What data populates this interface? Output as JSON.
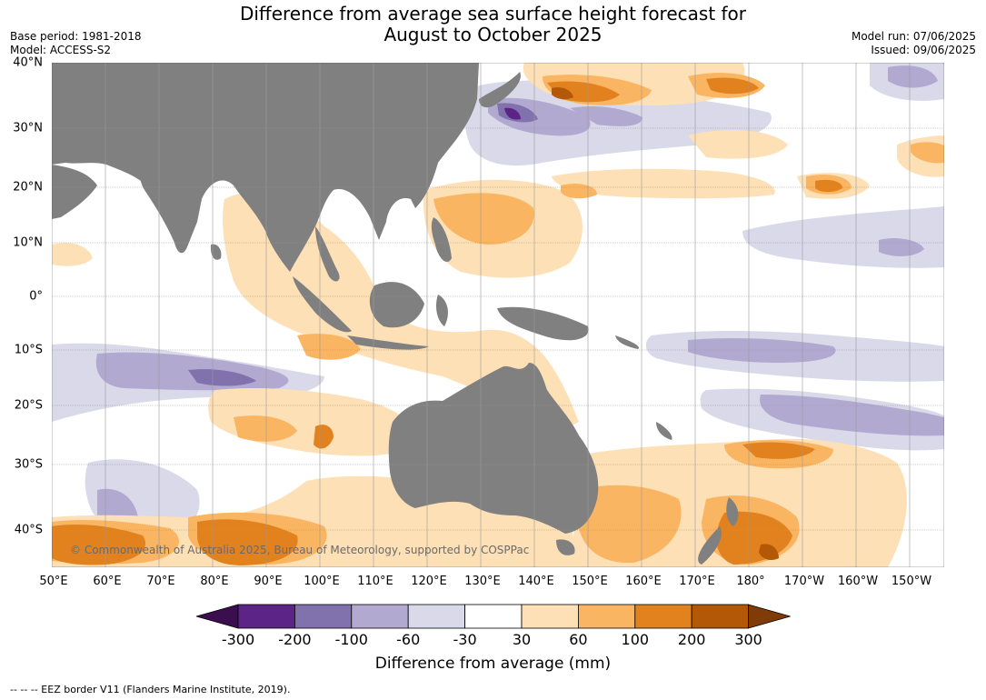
{
  "title_line1": "Difference from average sea surface height forecast for",
  "title_line2": "August to October 2025",
  "base_period": "Base period: 1981-2018",
  "model": "Model: ACCESS-S2",
  "model_run": "Model run: 07/06/2025",
  "issued": "Issued: 09/06/2025",
  "copyright": "© Commonwealth of Australia 2025, Bureau of Meteorology, supported by COSPPac",
  "footnote": "-- -- -- EEZ border V11 (Flanders Marine Institute, 2019).",
  "lat_labels": [
    "40°N",
    "30°N",
    "20°N",
    "10°N",
    "0°",
    "10°S",
    "20°S",
    "30°S",
    "40°S"
  ],
  "lon_labels": [
    "50°E",
    "60°E",
    "70°E",
    "80°E",
    "90°E",
    "100°E",
    "110°E",
    "120°E",
    "130°E",
    "140°E",
    "150°E",
    "160°E",
    "170°E",
    "180°",
    "170°W",
    "160°W",
    "150°W"
  ],
  "colorbar": {
    "label": "Difference from average (mm)",
    "ticks": [
      "-300",
      "-200",
      "-100",
      "-60",
      "-30",
      "30",
      "60",
      "100",
      "200",
      "300"
    ],
    "colors": [
      "#3b0f4f",
      "#5b2486",
      "#8171ad",
      "#b2a9d1",
      "#d9d9ea",
      "#ffffff",
      "#fee0b6",
      "#f9b562",
      "#e2821e",
      "#b35807",
      "#7f3b08"
    ]
  },
  "colors": {
    "land": "#808080",
    "grid": "#999999"
  }
}
